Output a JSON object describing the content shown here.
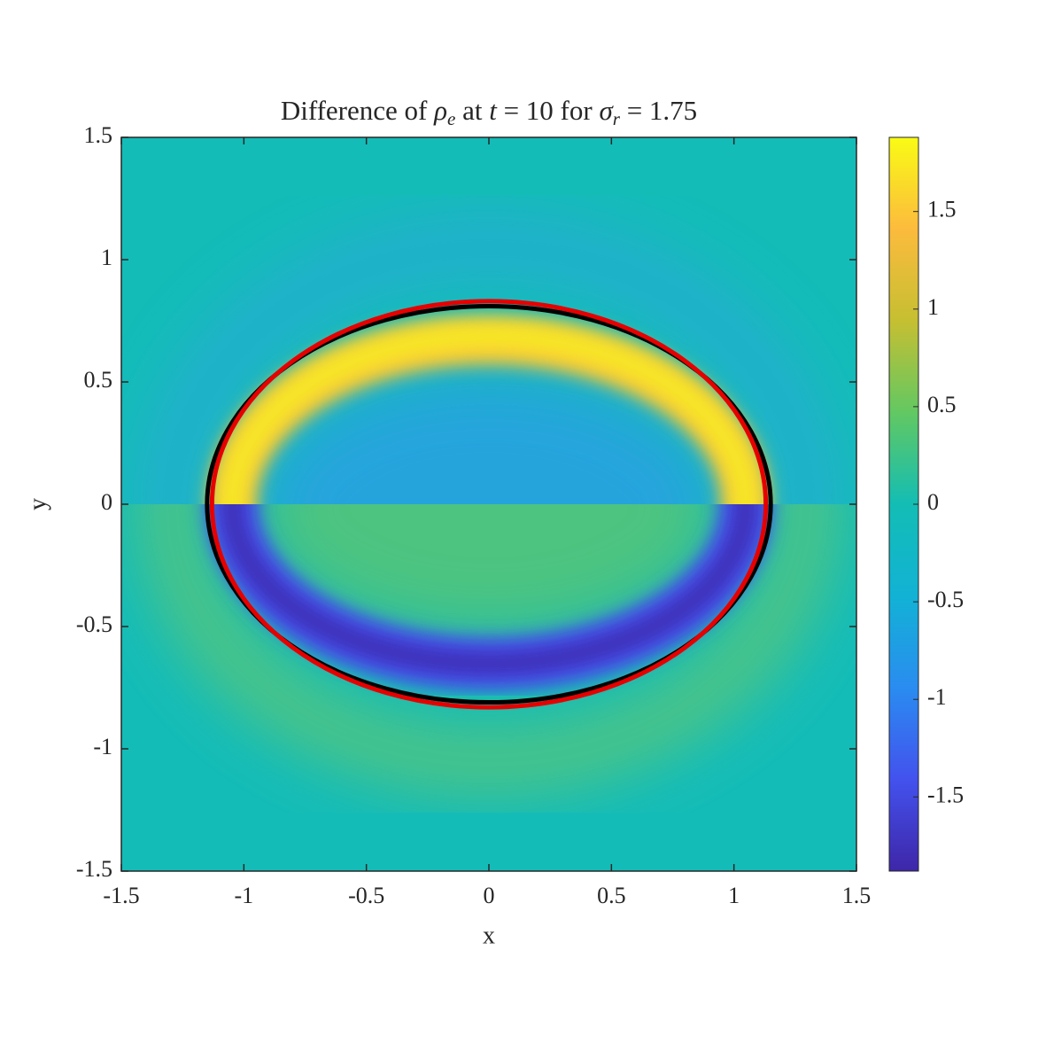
{
  "chart_data": {
    "type": "heatmap",
    "title_parts": [
      "Difference of ",
      "ρ",
      "e",
      " at ",
      "t",
      " = 10 for ",
      "σ",
      "r",
      " = 1.75"
    ],
    "xlabel": "x",
    "ylabel": "y",
    "xlim": [
      -1.5,
      1.5
    ],
    "ylim": [
      -1.5,
      1.5
    ],
    "xticks": [
      -1.5,
      -1,
      -0.5,
      0,
      0.5,
      1,
      1.5
    ],
    "yticks": [
      -1.5,
      -1,
      -0.5,
      0,
      0.5,
      1,
      1.5
    ],
    "clim": [
      -1.88,
      1.88
    ],
    "cticks": [
      -1.5,
      -1,
      -0.5,
      0,
      0.5,
      1,
      1.5
    ],
    "colormap": [
      "#3e26a8",
      "#4352ee",
      "#2a8cf0",
      "#12b2d5",
      "#13bdb4",
      "#62c862",
      "#c6bf32",
      "#fcbb3d",
      "#f9fb15"
    ],
    "ellipses": [
      {
        "color": "#000000",
        "rx": 1.15,
        "ry": 0.81
      },
      {
        "color": "#e60000",
        "rx": 1.13,
        "ry": 0.83
      }
    ]
  }
}
